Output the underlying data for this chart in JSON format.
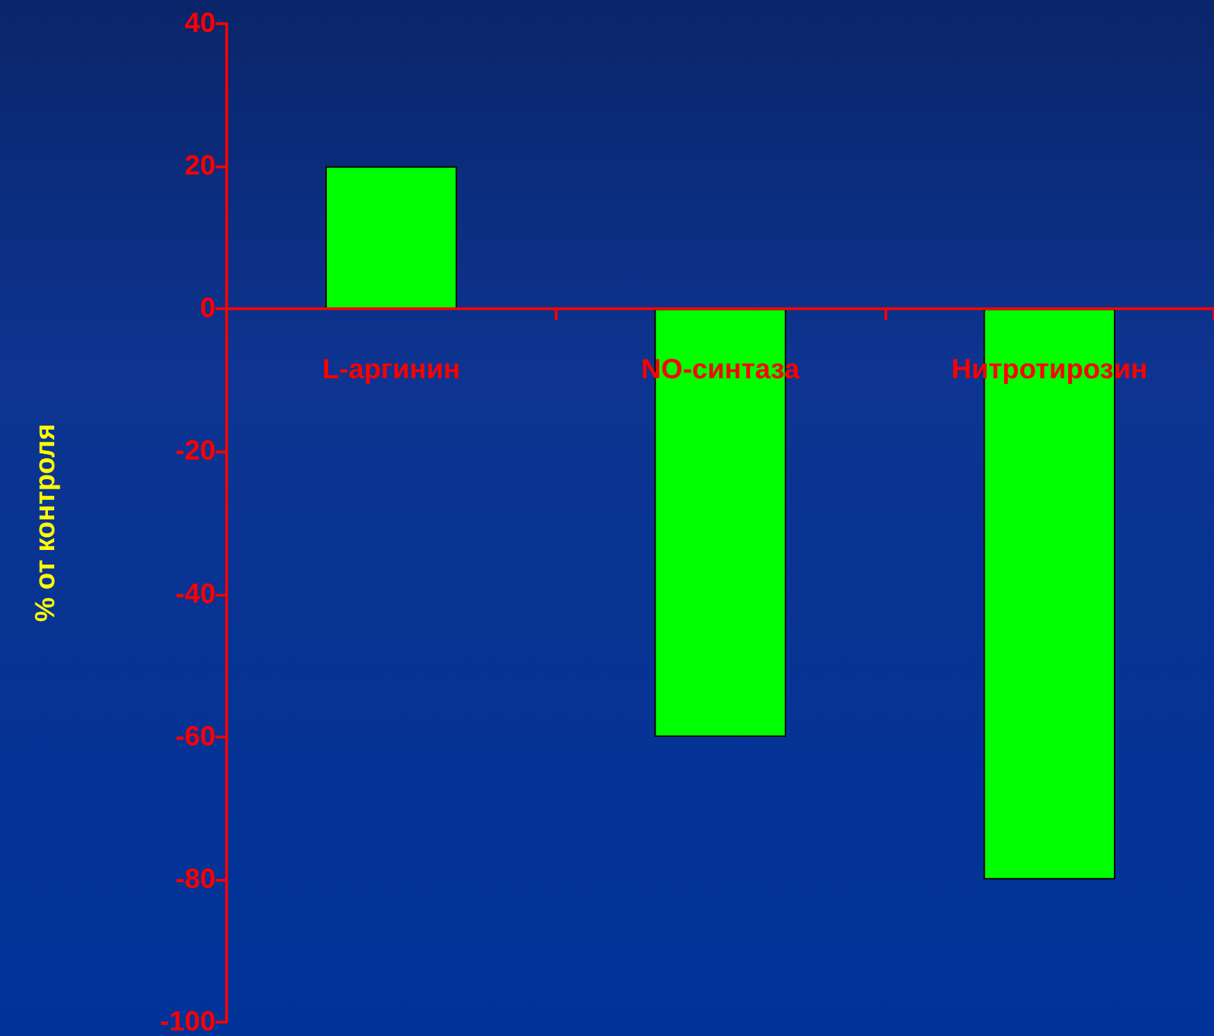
{
  "chart_data": {
    "type": "bar",
    "ylabel": "% от контроля",
    "categories": [
      "L-аргинин",
      "NO-синтаза",
      "Нитротирозин"
    ],
    "values": [
      20,
      -60,
      -80
    ],
    "color": "#00ff00",
    "ylim": [
      -100,
      40
    ],
    "yticks": [
      -100,
      -80,
      -60,
      -40,
      -20,
      0,
      20,
      40
    ],
    "grid": false
  }
}
